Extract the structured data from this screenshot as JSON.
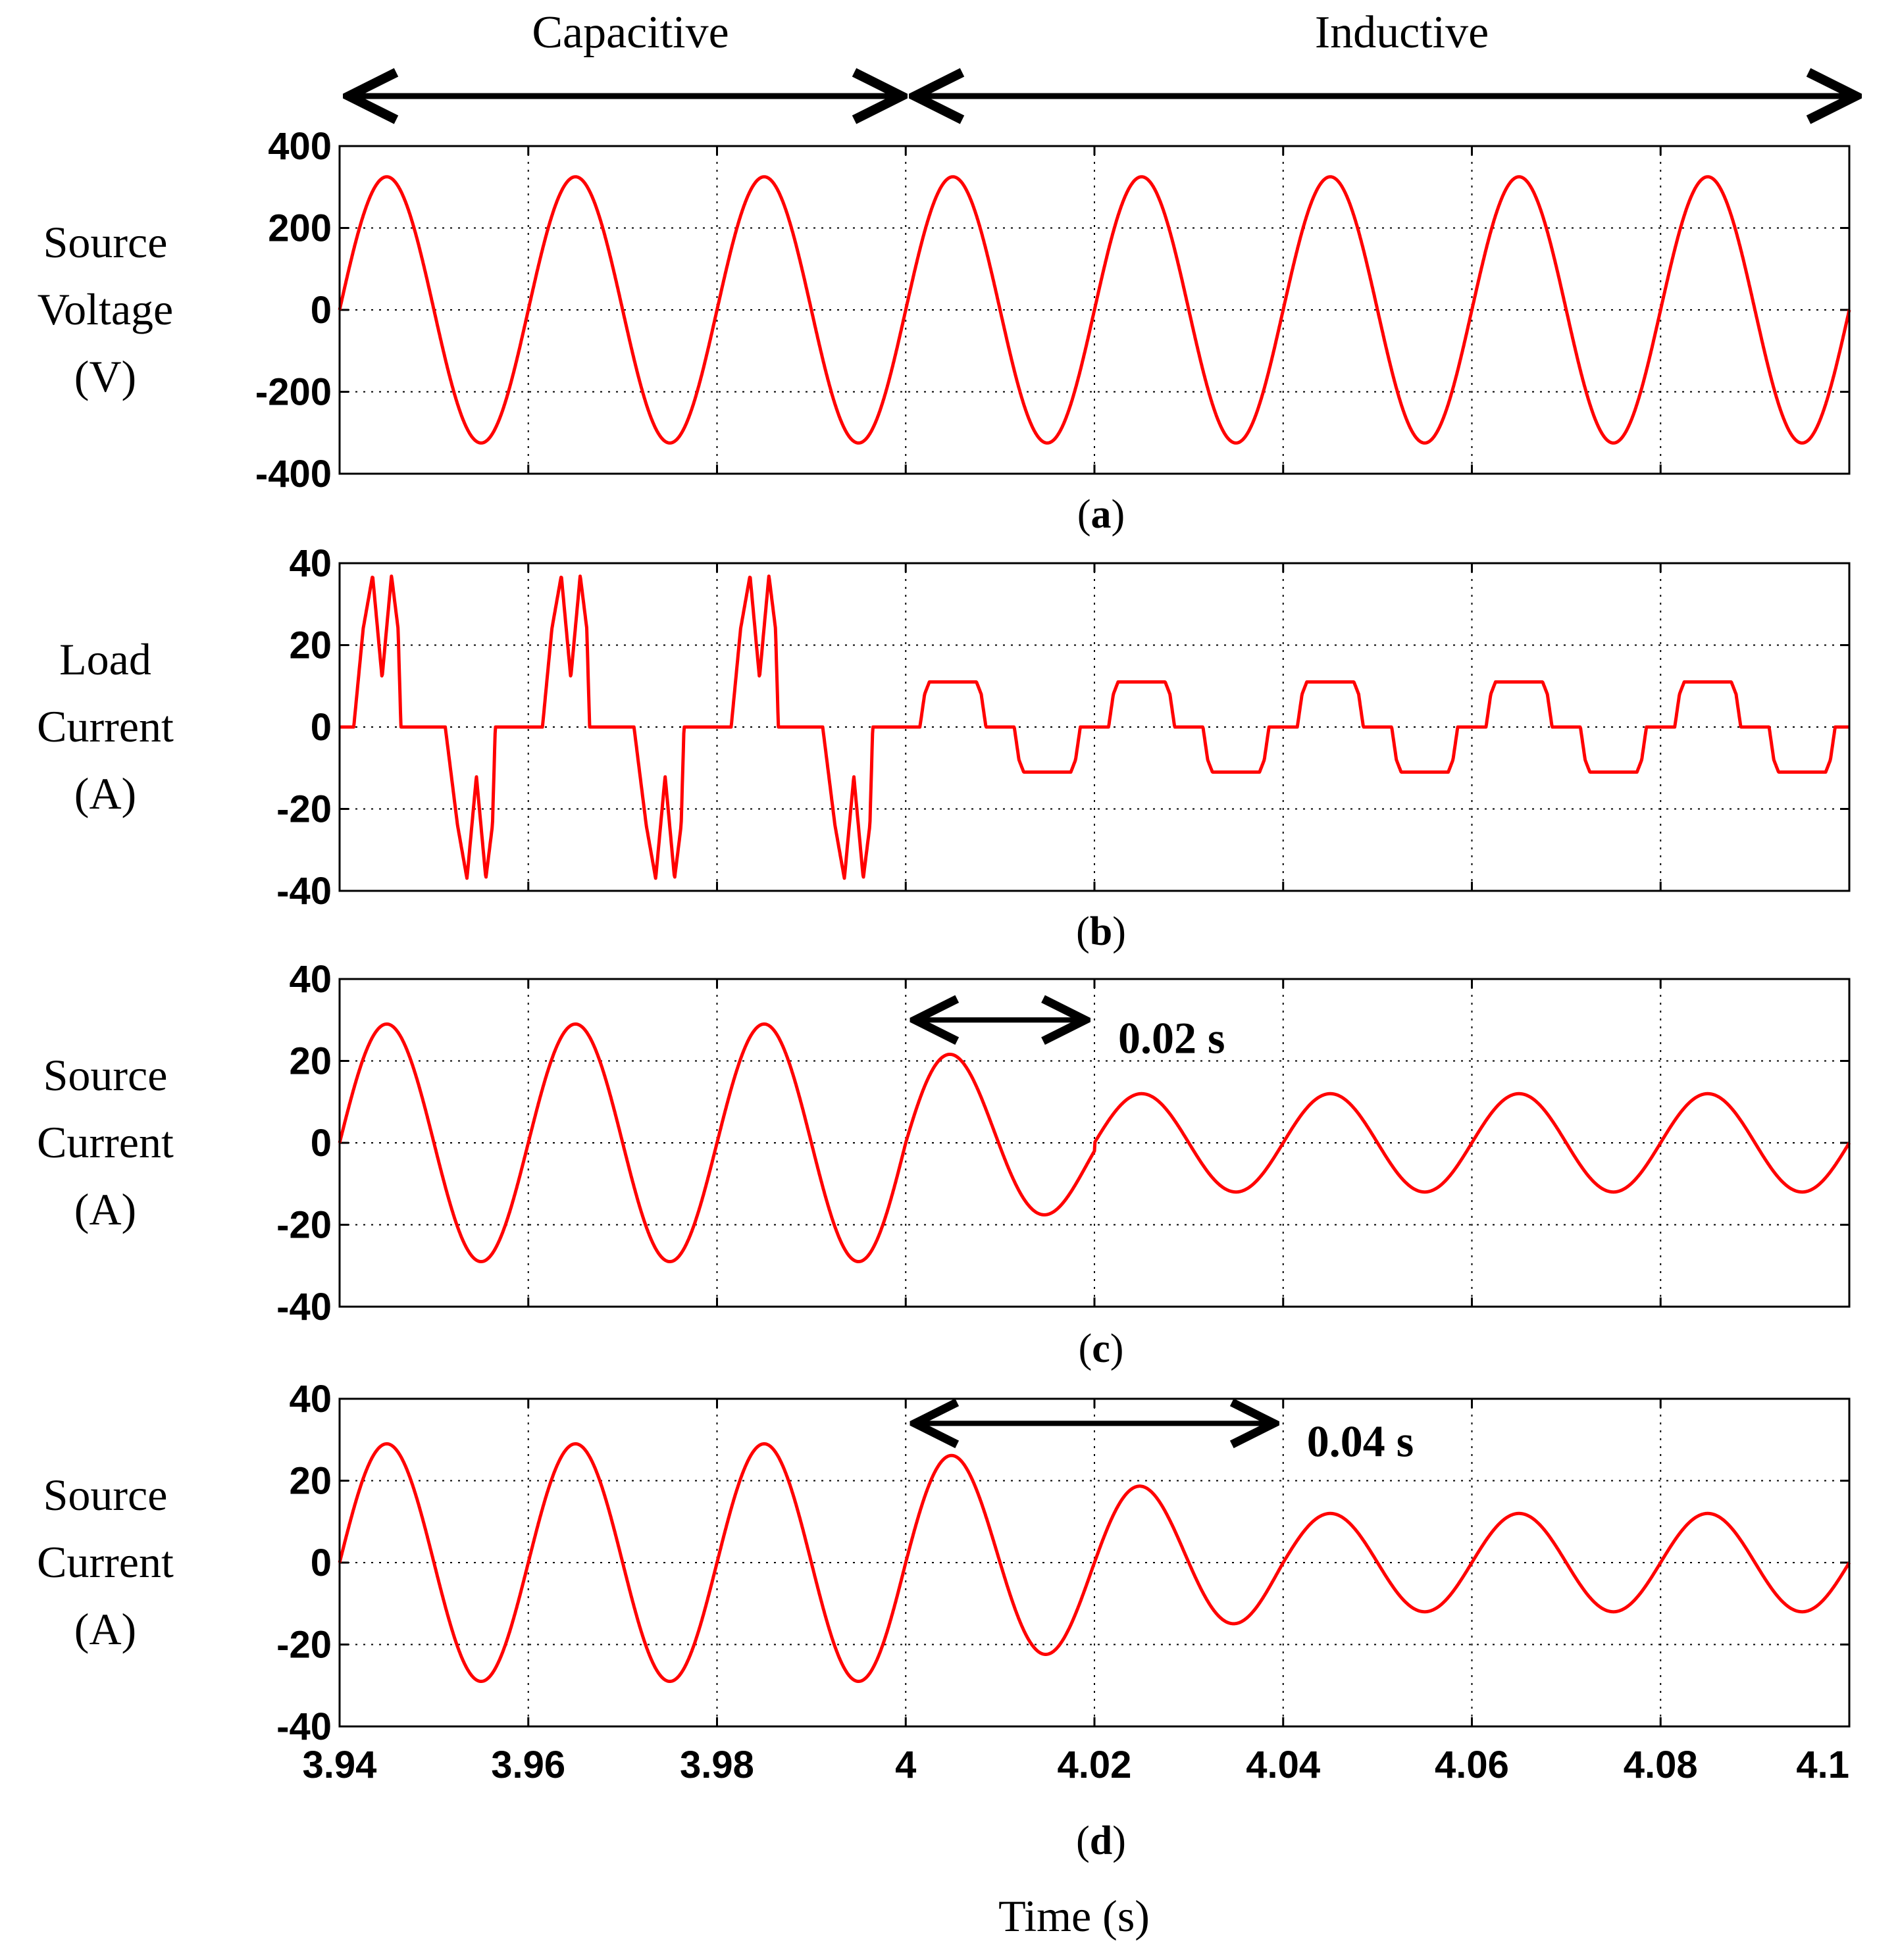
{
  "figure": {
    "region_labels": {
      "left": "Capacitive",
      "right": "Inductive"
    },
    "xlabel": "Time (s)",
    "x_ticks": [
      "3.94",
      "3.96",
      "3.98",
      "4",
      "4.02",
      "4.04",
      "4.06",
      "4.08",
      "4.1"
    ],
    "colors": {
      "trace": "#ff0000",
      "axis": "#000000",
      "grid": "#000000",
      "background": "#ffffff"
    }
  },
  "chart_data": [
    {
      "id": "a",
      "type": "line",
      "caption": "a",
      "ylabel_lines": [
        "Source",
        "Voltage",
        "(V)"
      ],
      "xlim": [
        3.94,
        4.1
      ],
      "ylim": [
        -400,
        400
      ],
      "x_ticks": [
        3.94,
        3.96,
        3.98,
        4.0,
        4.02,
        4.04,
        4.06,
        4.08,
        4.1
      ],
      "y_ticks": [
        400,
        200,
        0,
        -200,
        -400
      ],
      "y_tick_labels": [
        "400",
        "200",
        "0",
        "-200",
        "-400"
      ],
      "grid": true,
      "series": [
        {
          "name": "Source Voltage",
          "kind": "sine",
          "freq_hz": 50,
          "t0": 3.94,
          "segments": [
            {
              "from": 3.94,
              "to": 4.1,
              "amplitude": 325,
              "phase_deg": 0
            }
          ]
        }
      ]
    },
    {
      "id": "b",
      "type": "line",
      "caption": "b",
      "ylabel_lines": [
        "Load",
        "Current",
        "(A)"
      ],
      "xlim": [
        3.94,
        4.1
      ],
      "ylim": [
        -40,
        40
      ],
      "x_ticks": [
        3.94,
        3.96,
        3.98,
        4.0,
        4.02,
        4.04,
        4.06,
        4.08,
        4.1
      ],
      "y_ticks": [
        40,
        20,
        0,
        -20,
        -40
      ],
      "y_tick_labels": [
        "40",
        "20",
        "0",
        "-20",
        "-40"
      ],
      "grid": true,
      "series": [
        {
          "name": "Load Current",
          "kind": "piecewise",
          "period_s": 0.02,
          "t0": 3.94,
          "segments": [
            {
              "from": 3.94,
              "to": 4.0,
              "shape": "capacitive-rectifier",
              "peak": 37,
              "dip": 12,
              "pos_points": [
                [
                  0.0,
                  0
                ],
                [
                  0.0015,
                  0
                ],
                [
                  0.0025,
                  24
                ],
                [
                  0.0035,
                  37
                ],
                [
                  0.0045,
                  12
                ],
                [
                  0.0055,
                  37
                ],
                [
                  0.0062,
                  24
                ],
                [
                  0.0065,
                  0
                ],
                [
                  0.01,
                  0
                ]
              ],
              "neg_points": [
                [
                  0.01,
                  0
                ],
                [
                  0.0112,
                  0
                ],
                [
                  0.0125,
                  -24
                ],
                [
                  0.0135,
                  -37
                ],
                [
                  0.0145,
                  -12
                ],
                [
                  0.0155,
                  -37
                ],
                [
                  0.0162,
                  -24
                ],
                [
                  0.0165,
                  0
                ],
                [
                  0.02,
                  0
                ]
              ]
            },
            {
              "from": 4.0,
              "to": 4.1,
              "shape": "inductive-rectifier",
              "level": 11,
              "points": [
                [
                  0.0,
                  0
                ],
                [
                  0.0015,
                  0
                ],
                [
                  0.002,
                  8
                ],
                [
                  0.0025,
                  11
                ],
                [
                  0.0075,
                  11
                ],
                [
                  0.008,
                  8
                ],
                [
                  0.0085,
                  0
                ],
                [
                  0.0115,
                  0
                ],
                [
                  0.012,
                  -8
                ],
                [
                  0.0125,
                  -11
                ],
                [
                  0.0175,
                  -11
                ],
                [
                  0.018,
                  -8
                ],
                [
                  0.0185,
                  0
                ],
                [
                  0.02,
                  0
                ]
              ]
            }
          ]
        }
      ]
    },
    {
      "id": "c",
      "type": "line",
      "caption": "c",
      "ylabel_lines": [
        "Source",
        "Current",
        "(A)"
      ],
      "xlim": [
        3.94,
        4.1
      ],
      "ylim": [
        -40,
        40
      ],
      "x_ticks": [
        3.94,
        3.96,
        3.98,
        4.0,
        4.02,
        4.04,
        4.06,
        4.08,
        4.1
      ],
      "y_ticks": [
        40,
        20,
        0,
        -20,
        -40
      ],
      "y_tick_labels": [
        "40",
        "20",
        "0",
        "-20",
        "-40"
      ],
      "grid": true,
      "annotation": {
        "text": "0.02 s",
        "from": 4.0,
        "to": 4.02,
        "y": 30
      },
      "series": [
        {
          "name": "Source Current",
          "kind": "sine",
          "freq_hz": 50,
          "t0": 3.94,
          "segments": [
            {
              "from": 3.94,
              "to": 4.0,
              "amplitude": 29,
              "phase_deg": 0
            },
            {
              "from": 4.0,
              "to": 4.02,
              "amplitude_start": 25,
              "amplitude_end": 13,
              "phase_deg": 0,
              "offset_start": 0,
              "offset_end": -2
            },
            {
              "from": 4.02,
              "to": 4.1,
              "amplitude": 12,
              "phase_deg": 0
            }
          ]
        }
      ]
    },
    {
      "id": "d",
      "type": "line",
      "caption": "d",
      "ylabel_lines": [
        "Source",
        "Current",
        "(A)"
      ],
      "xlim": [
        3.94,
        4.1
      ],
      "ylim": [
        -40,
        40
      ],
      "x_ticks": [
        3.94,
        3.96,
        3.98,
        4.0,
        4.02,
        4.04,
        4.06,
        4.08,
        4.1
      ],
      "y_ticks": [
        40,
        20,
        0,
        -20,
        -40
      ],
      "y_tick_labels": [
        "40",
        "20",
        "0",
        "-20",
        "-40"
      ],
      "grid": true,
      "annotation": {
        "text": "0.04 s",
        "from": 4.0,
        "to": 4.04,
        "y": 34
      },
      "series": [
        {
          "name": "Source Current",
          "kind": "sine",
          "freq_hz": 50,
          "t0": 3.94,
          "segments": [
            {
              "from": 3.94,
              "to": 4.0,
              "amplitude": 29,
              "phase_deg": 0
            },
            {
              "from": 4.0,
              "to": 4.04,
              "amplitude_start": 28,
              "amplitude_end": 13,
              "phase_deg": 0
            },
            {
              "from": 4.04,
              "to": 4.1,
              "amplitude": 12,
              "phase_deg": 0
            }
          ]
        }
      ]
    }
  ]
}
